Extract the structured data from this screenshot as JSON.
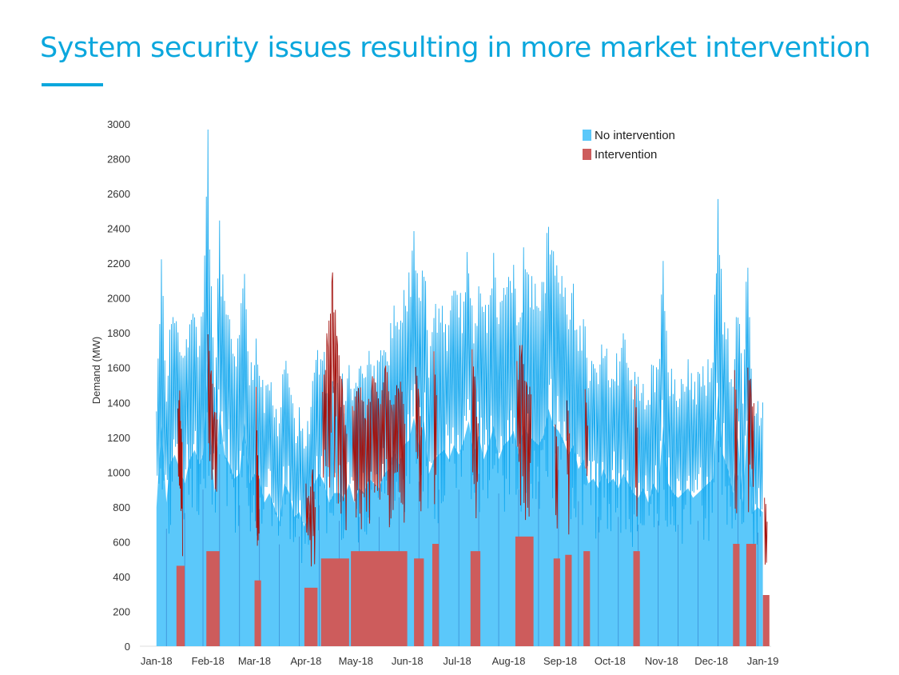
{
  "slide": {
    "title": "System security issues resulting in more market intervention"
  },
  "colors": {
    "accent": "#0ba7dd",
    "no_intervention": "#5bc8fa",
    "no_intervention_line": "#0aa4ee",
    "intervention": "#cd5c5c",
    "intervention_line": "#a4130f"
  },
  "chart_data": {
    "type": "area",
    "title": "",
    "ylabel": "Demand (MW)",
    "xlabel": "",
    "ylim": [
      0,
      3000
    ],
    "yticks": [
      0,
      200,
      400,
      600,
      800,
      1000,
      1200,
      1400,
      1600,
      1800,
      2000,
      2200,
      2400,
      2600,
      2800,
      3000
    ],
    "xlim": [
      "2017-12-22",
      "2019-01-06"
    ],
    "xticks": [
      {
        "date": "2018-01-01",
        "label": "Jan-18"
      },
      {
        "date": "2018-02-01",
        "label": "Feb-18"
      },
      {
        "date": "2018-03-01",
        "label": "Mar-18"
      },
      {
        "date": "2018-04-01",
        "label": "Apr-18"
      },
      {
        "date": "2018-05-01",
        "label": "May-18"
      },
      {
        "date": "2018-06-01",
        "label": "Jun-18"
      },
      {
        "date": "2018-07-01",
        "label": "Jul-18"
      },
      {
        "date": "2018-08-01",
        "label": "Aug-18"
      },
      {
        "date": "2018-09-01",
        "label": "Sep-18"
      },
      {
        "date": "2018-10-01",
        "label": "Oct-18"
      },
      {
        "date": "2018-11-01",
        "label": "Nov-18"
      },
      {
        "date": "2018-12-01",
        "label": "Dec-18"
      },
      {
        "date": "2019-01-01",
        "label": "Jan-19"
      }
    ],
    "legend_position": "top-right",
    "grid": false,
    "series": [
      {
        "name": "No intervention",
        "x": [
          "2018-01-01",
          "2018-01-04",
          "2018-01-07",
          "2018-01-09",
          "2018-01-12",
          "2018-01-15",
          "2018-01-18",
          "2018-01-21",
          "2018-01-24",
          "2018-01-27",
          "2018-01-29",
          "2018-02-01",
          "2018-02-03",
          "2018-02-05",
          "2018-02-08",
          "2018-02-11",
          "2018-02-14",
          "2018-02-17",
          "2018-02-20",
          "2018-02-23",
          "2018-02-26",
          "2018-03-01",
          "2018-03-04",
          "2018-03-07",
          "2018-03-10",
          "2018-03-13",
          "2018-03-16",
          "2018-03-19",
          "2018-03-22",
          "2018-03-25",
          "2018-03-28",
          "2018-03-31",
          "2018-04-03",
          "2018-04-06",
          "2018-04-09",
          "2018-04-12",
          "2018-04-15",
          "2018-04-18",
          "2018-04-21",
          "2018-04-24",
          "2018-04-27",
          "2018-04-30",
          "2018-05-03",
          "2018-05-06",
          "2018-05-09",
          "2018-05-12",
          "2018-05-15",
          "2018-05-18",
          "2018-05-21",
          "2018-05-24",
          "2018-05-27",
          "2018-05-30",
          "2018-06-02",
          "2018-06-05",
          "2018-06-08",
          "2018-06-11",
          "2018-06-14",
          "2018-06-17",
          "2018-06-20",
          "2018-06-23",
          "2018-06-26",
          "2018-06-29",
          "2018-07-02",
          "2018-07-05",
          "2018-07-08",
          "2018-07-11",
          "2018-07-14",
          "2018-07-17",
          "2018-07-20",
          "2018-07-23",
          "2018-07-26",
          "2018-07-29",
          "2018-08-01",
          "2018-08-04",
          "2018-08-07",
          "2018-08-10",
          "2018-08-13",
          "2018-08-16",
          "2018-08-19",
          "2018-08-22",
          "2018-08-25",
          "2018-08-28",
          "2018-08-31",
          "2018-09-03",
          "2018-09-06",
          "2018-09-09",
          "2018-09-12",
          "2018-09-15",
          "2018-09-18",
          "2018-09-21",
          "2018-09-24",
          "2018-09-27",
          "2018-09-30",
          "2018-10-03",
          "2018-10-06",
          "2018-10-09",
          "2018-10-12",
          "2018-10-15",
          "2018-10-18",
          "2018-10-21",
          "2018-10-24",
          "2018-10-27",
          "2018-10-30",
          "2018-11-02",
          "2018-11-05",
          "2018-11-08",
          "2018-11-11",
          "2018-11-14",
          "2018-11-17",
          "2018-11-20",
          "2018-11-23",
          "2018-11-26",
          "2018-11-29",
          "2018-12-02",
          "2018-12-05",
          "2018-12-08",
          "2018-12-11",
          "2018-12-14",
          "2018-12-17",
          "2018-12-20",
          "2018-12-23",
          "2018-12-26",
          "2018-12-29",
          "2019-01-01"
        ],
        "values": [
          1450,
          2300,
          1500,
          1900,
          2000,
          1850,
          1700,
          1950,
          2050,
          1900,
          2000,
          3000,
          2100,
          1600,
          2450,
          2000,
          1900,
          1750,
          1800,
          2330,
          1700,
          1800,
          1750,
          1500,
          1600,
          1450,
          1300,
          1700,
          1600,
          1350,
          1400,
          1250,
          1350,
          1700,
          1800,
          1700,
          1500,
          1600,
          1600,
          1550,
          1700,
          1500,
          1650,
          1600,
          1750,
          1700,
          1650,
          1800,
          1850,
          2050,
          1900,
          2100,
          2150,
          2390,
          2100,
          2350,
          1800,
          1950,
          2000,
          2050,
          1950,
          2100,
          2000,
          2150,
          2350,
          2000,
          2200,
          1950,
          2100,
          2300,
          1950,
          2100,
          2150,
          2250,
          2000,
          2300,
          2200,
          2150,
          2100,
          2200,
          2480,
          2300,
          2250,
          2150,
          2000,
          2100,
          1850,
          1950,
          1700,
          1750,
          1650,
          1850,
          1700,
          1750,
          1650,
          1800,
          1700,
          1600,
          1550,
          1650,
          1500,
          1700,
          1600,
          2300,
          1700,
          1600,
          1550,
          1600,
          1650,
          1550,
          1600,
          1650,
          1700,
          1750,
          2620,
          2000,
          1850,
          1600,
          2180,
          1500,
          2430,
          1400,
          1450,
          1400
        ]
      },
      {
        "name": "Intervention",
        "segments": [
          {
            "x": [
              "2018-01-14",
              "2018-01-15",
              "2018-01-16",
              "2018-01-17"
            ],
            "values": [
              1450,
              1500,
              1250,
              1100
            ]
          },
          {
            "x": [
              "2018-02-01",
              "2018-02-03",
              "2018-02-05",
              "2018-02-07"
            ],
            "values": [
              1850,
              1600,
              1400,
              1300
            ]
          },
          {
            "x": [
              "2018-03-02",
              "2018-03-03",
              "2018-03-04"
            ],
            "values": [
              1600,
              1100,
              900
            ]
          },
          {
            "x": [
              "2018-04-01",
              "2018-04-03",
              "2018-04-05",
              "2018-04-07"
            ],
            "values": [
              1000,
              850,
              1050,
              800
            ]
          },
          {
            "x": [
              "2018-04-11",
              "2018-04-14",
              "2018-04-17",
              "2018-04-20",
              "2018-04-23",
              "2018-04-26"
            ],
            "values": [
              1500,
              1850,
              2150,
              1800,
              1500,
              1200
            ]
          },
          {
            "x": [
              "2018-04-29",
              "2018-05-03",
              "2018-05-07",
              "2018-05-11",
              "2018-05-15",
              "2018-05-19",
              "2018-05-23",
              "2018-05-27",
              "2018-05-31"
            ],
            "values": [
              1400,
              1550,
              1350,
              1600,
              1450,
              1650,
              1400,
              1600,
              1300
            ]
          },
          {
            "x": [
              "2018-06-06",
              "2018-06-08",
              "2018-06-10"
            ],
            "values": [
              1750,
              1500,
              1200
            ]
          },
          {
            "x": [
              "2018-06-17",
              "2018-06-19"
            ],
            "values": [
              1700,
              1400
            ]
          },
          {
            "x": [
              "2018-07-10",
              "2018-07-12",
              "2018-07-14"
            ],
            "values": [
              1750,
              1500,
              1300
            ]
          },
          {
            "x": [
              "2018-08-06",
              "2018-08-09",
              "2018-08-12",
              "2018-08-15"
            ],
            "values": [
              1650,
              1800,
              1500,
              1600
            ]
          },
          {
            "x": [
              "2018-08-29",
              "2018-08-31"
            ],
            "values": [
              1350,
              1200
            ]
          },
          {
            "x": [
              "2018-09-05",
              "2018-09-07"
            ],
            "values": [
              1450,
              1250
            ]
          },
          {
            "x": [
              "2018-09-16",
              "2018-09-18"
            ],
            "values": [
              1600,
              1300
            ]
          },
          {
            "x": [
              "2018-10-16",
              "2018-10-18"
            ],
            "values": [
              1500,
              1300
            ]
          },
          {
            "x": [
              "2018-12-15",
              "2018-12-17"
            ],
            "values": [
              1600,
              1400
            ]
          },
          {
            "x": [
              "2018-12-23",
              "2018-12-25",
              "2018-12-27"
            ],
            "values": [
              1700,
              1500,
              1400
            ]
          },
          {
            "x": [
              "2019-01-02",
              "2019-01-04"
            ],
            "values": [
              900,
              700
            ]
          }
        ]
      }
    ]
  }
}
